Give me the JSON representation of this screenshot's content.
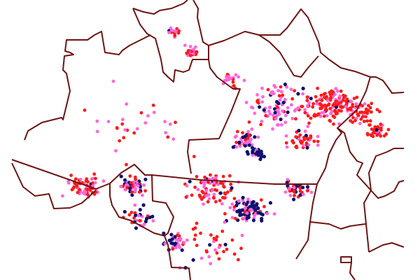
{
  "map": {
    "background": "#ffffff",
    "border_color": "#6e1414",
    "point_categories": [
      {
        "key": "red",
        "color": "#ff1a1a"
      },
      {
        "key": "pink",
        "color": "#ff66dd"
      },
      {
        "key": "navy",
        "color": "#101070"
      }
    ]
  }
}
